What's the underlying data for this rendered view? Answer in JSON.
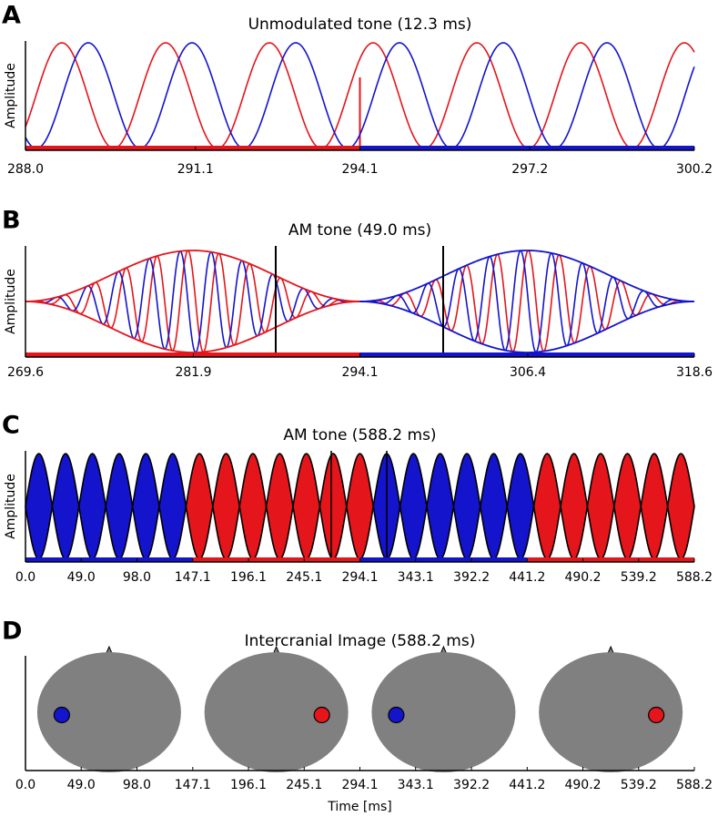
{
  "chart_data": [
    {
      "type": "line",
      "panel": "A",
      "title": "Unmodulated tone (12.3 ms)",
      "ylabel": "Amplitude",
      "xlim": [
        288.0,
        300.2
      ],
      "xticks": [
        {
          "value": 288.0,
          "label": "288.0"
        },
        291.1,
        294.1,
        297.2,
        300.2
      ]
    },
    {
      "type": "envelope",
      "panel": "B",
      "title": "AM tone (49.0 ms)",
      "ylabel": "Amplitude",
      "xlim": [
        269.6,
        318.6
      ],
      "xticks": [
        269.6,
        281.9,
        294.1,
        306.4,
        318.6
      ]
    },
    {
      "type": "area",
      "panel": "C",
      "title": "AM tone (588.2 ms)",
      "ylabel": "Amplitude",
      "xlim": [
        0.0,
        588.2
      ],
      "xticks": [
        {
          "value": 0.0,
          "label": "0.0"
        },
        {
          "value": 49.0,
          "label": "49.0"
        },
        {
          "value": 98.0,
          "label": "98.0"
        },
        147.1,
        196.1,
        245.1,
        294.1,
        343.1,
        392.2,
        441.2,
        490.2,
        539.2,
        588.2
      ]
    },
    {
      "type": "image",
      "panel": "D",
      "title": "Intercranial Image (588.2 ms)",
      "xlabel": "Time [ms]",
      "xlim": [
        0.0,
        588.2
      ],
      "xticks": [
        {
          "value": 0.0,
          "label": "0.0"
        },
        {
          "value": 49.0,
          "label": "49.0"
        },
        {
          "value": 98.0,
          "label": "98.0"
        },
        147.1,
        196.1,
        245.1,
        294.1,
        343.1,
        392.2,
        441.2,
        490.2,
        539.2,
        588.2
      ]
    }
  ]
}
